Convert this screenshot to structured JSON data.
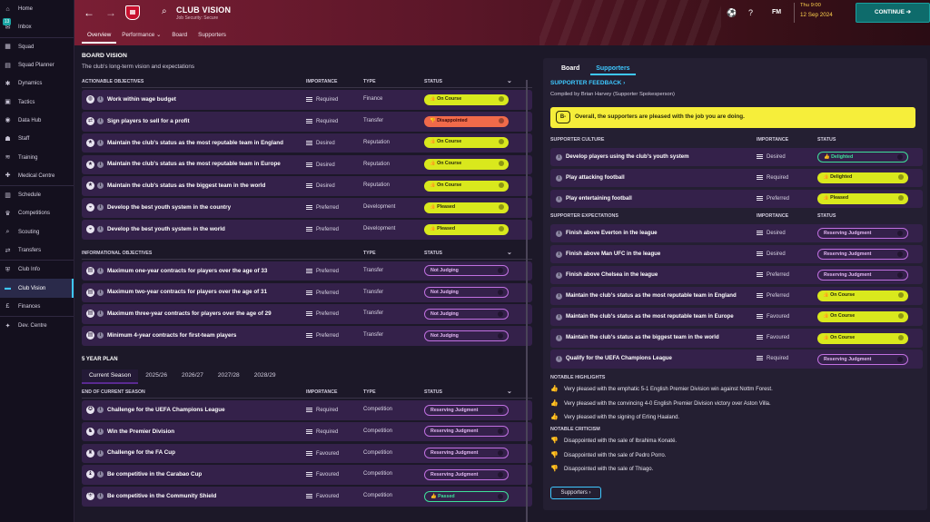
{
  "sidebar": {
    "items": [
      {
        "label": "Home",
        "icon": "home-icon",
        "glyph": "⌂"
      },
      {
        "label": "Inbox",
        "icon": "inbox-icon",
        "glyph": "✉",
        "badge": "13"
      },
      {
        "label": "Squad",
        "icon": "squad-icon",
        "glyph": "▦"
      },
      {
        "label": "Squad Planner",
        "icon": "squad-planner-icon",
        "glyph": "▤"
      },
      {
        "label": "Dynamics",
        "icon": "dynamics-icon",
        "glyph": "✱"
      },
      {
        "label": "Tactics",
        "icon": "tactics-icon",
        "glyph": "▣"
      },
      {
        "label": "Data Hub",
        "icon": "data-hub-icon",
        "glyph": "◉"
      },
      {
        "label": "Staff",
        "icon": "staff-icon",
        "glyph": "☗"
      },
      {
        "label": "Training",
        "icon": "training-icon",
        "glyph": "≋"
      },
      {
        "label": "Medical Centre",
        "icon": "medical-icon",
        "glyph": "✚"
      },
      {
        "label": "Schedule",
        "icon": "schedule-icon",
        "glyph": "▥"
      },
      {
        "label": "Competitions",
        "icon": "competitions-icon",
        "glyph": "♛"
      },
      {
        "label": "Scouting",
        "icon": "scouting-icon",
        "glyph": "⌕"
      },
      {
        "label": "Transfers",
        "icon": "transfers-icon",
        "glyph": "⇄"
      },
      {
        "label": "Club Info",
        "icon": "club-info-icon",
        "glyph": "⛨"
      },
      {
        "label": "Club Vision",
        "icon": "club-vision-icon",
        "glyph": "▬"
      },
      {
        "label": "Finances",
        "icon": "finances-icon",
        "glyph": "£"
      },
      {
        "label": "Dev. Centre",
        "icon": "dev-centre-icon",
        "glyph": "✦"
      }
    ],
    "active": "Club Vision"
  },
  "header": {
    "title": "CLUB VISION",
    "subtitle": "Job Security: Secure",
    "tabs": [
      "Overview",
      "Performance ⌄",
      "Board",
      "Supporters"
    ],
    "active_tab": "Overview",
    "fm_label": "FM",
    "time": "Thu 9:00",
    "date": "12 Sep 2024",
    "continue_label": "CONTINUE ➔"
  },
  "board_vision": {
    "title": "BOARD VISION",
    "subtitle": "The club's long-term vision and expectations",
    "actionable_header": "ACTIONABLE OBJECTIVES",
    "col_importance": "IMPORTANCE",
    "col_type": "TYPE",
    "col_status": "STATUS",
    "actionable": [
      {
        "label": "Work within wage budget",
        "importance": "Required",
        "type": "Finance",
        "status": "On Course",
        "style": "lime",
        "icon": "wallet-icon",
        "glyph": "◍"
      },
      {
        "label": "Sign players to sell for a profit",
        "importance": "Required",
        "type": "Transfer",
        "status": "Disappointed",
        "style": "red",
        "icon": "transfer-icon",
        "glyph": "⇄"
      },
      {
        "label": "Maintain the club's status as the most reputable team in England",
        "importance": "Desired",
        "type": "Reputation",
        "status": "On Course",
        "style": "lime",
        "icon": "star-icon",
        "glyph": "★"
      },
      {
        "label": "Maintain the club's status as the most reputable team in Europe",
        "importance": "Desired",
        "type": "Reputation",
        "status": "On Course",
        "style": "lime",
        "icon": "star-icon",
        "glyph": "★"
      },
      {
        "label": "Maintain the club's status as the biggest team in the world",
        "importance": "Desired",
        "type": "Reputation",
        "status": "On Course",
        "style": "lime",
        "icon": "star-icon",
        "glyph": "★"
      },
      {
        "label": "Develop the best youth system in the country",
        "importance": "Preferred",
        "type": "Development",
        "status": "Pleased",
        "style": "lime",
        "icon": "youth-icon",
        "glyph": "◒"
      },
      {
        "label": "Develop the best youth system in the world",
        "importance": "Preferred",
        "type": "Development",
        "status": "Pleased",
        "style": "lime",
        "icon": "youth-icon",
        "glyph": "◒"
      }
    ],
    "informational_header": "INFORMATIONAL OBJECTIVES",
    "informational": [
      {
        "label": "Maximum one-year contracts for players over the age of 33",
        "importance": "Preferred",
        "type": "Transfer",
        "status": "Not Judging",
        "style": "outline",
        "icon": "contract-icon",
        "glyph": "▤"
      },
      {
        "label": "Maximum two-year contracts for players over the age of 31",
        "importance": "Preferred",
        "type": "Transfer",
        "status": "Not Judging",
        "style": "outline",
        "icon": "contract-icon",
        "glyph": "▤"
      },
      {
        "label": "Maximum three-year contracts for players over the age of 29",
        "importance": "Preferred",
        "type": "Transfer",
        "status": "Not Judging",
        "style": "outline",
        "icon": "contract-icon",
        "glyph": "▤"
      },
      {
        "label": "Minimum 4-year contracts for first-team players",
        "importance": "Preferred",
        "type": "Transfer",
        "status": "Not Judging",
        "style": "outline",
        "icon": "contract-icon",
        "glyph": "▤"
      }
    ],
    "plan_title": "5 YEAR PLAN",
    "plan_tabs": [
      "Current Season",
      "2025/26",
      "2026/27",
      "2027/28",
      "2028/29"
    ],
    "plan_active": "Current Season",
    "season_header": "END OF CURRENT SEASON",
    "season": [
      {
        "label": "Challenge for the UEFA Champions League",
        "importance": "Required",
        "type": "Competition",
        "status": "Reserving Judgment",
        "style": "outline",
        "icon": "ucl-icon",
        "glyph": "✪"
      },
      {
        "label": "Win the Premier Division",
        "importance": "Required",
        "type": "Competition",
        "status": "Reserving Judgment",
        "style": "outline",
        "icon": "premier-icon",
        "glyph": "♞"
      },
      {
        "label": "Challenge for the FA Cup",
        "importance": "Favoured",
        "type": "Competition",
        "status": "Reserving Judgment",
        "style": "outline",
        "icon": "fa-cup-icon",
        "glyph": "♜"
      },
      {
        "label": "Be competitive in the Carabao Cup",
        "importance": "Favoured",
        "type": "Competition",
        "status": "Reserving Judgment",
        "style": "outline",
        "icon": "carabao-icon",
        "glyph": "♝"
      },
      {
        "label": "Be competitive in the Community Shield",
        "importance": "Favoured",
        "type": "Competition",
        "status": "Passed",
        "style": "outline-green",
        "icon": "shield-icon",
        "glyph": "⛨"
      }
    ]
  },
  "supporters": {
    "tabs": [
      "Board",
      "Supporters"
    ],
    "active_tab": "Supporters",
    "feedback_title": "SUPPORTER FEEDBACK ›",
    "compiled": "Compiled by Brian Harvey (Supporter Spokesperson)",
    "grade": "B-",
    "banner": "Overall, the supporters are pleased with the job you are doing.",
    "culture_header": "SUPPORTER CULTURE",
    "col_importance": "IMPORTANCE",
    "col_status": "STATUS",
    "culture": [
      {
        "label": "Develop players using the club's youth system",
        "importance": "Desired",
        "status": "Delighted",
        "style": "outline-green"
      },
      {
        "label": "Play attacking football",
        "importance": "Required",
        "status": "Delighted",
        "style": "lime"
      },
      {
        "label": "Play entertaining football",
        "importance": "Preferred",
        "status": "Pleased",
        "style": "lime"
      }
    ],
    "expect_header": "SUPPORTER EXPECTATIONS",
    "expectations": [
      {
        "label": "Finish above Everton in the league",
        "importance": "Desired",
        "status": "Reserving Judgment",
        "style": "outline"
      },
      {
        "label": "Finish above Man UFC in the league",
        "importance": "Desired",
        "status": "Reserving Judgment",
        "style": "outline"
      },
      {
        "label": "Finish above Chelsea in the league",
        "importance": "Preferred",
        "status": "Reserving Judgment",
        "style": "outline"
      },
      {
        "label": "Maintain the club's status as the most reputable team in England",
        "importance": "Preferred",
        "status": "On Course",
        "style": "lime"
      },
      {
        "label": "Maintain the club's status as the most reputable team in Europe",
        "importance": "Favoured",
        "status": "On Course",
        "style": "lime"
      },
      {
        "label": "Maintain the club's status as the biggest team in the world",
        "importance": "Favoured",
        "status": "On Course",
        "style": "lime"
      },
      {
        "label": "Qualify for the UEFA Champions League",
        "importance": "Required",
        "status": "Reserving Judgment",
        "style": "outline"
      }
    ],
    "highlights_header": "NOTABLE HIGHLIGHTS",
    "highlights": [
      "Very pleased with the emphatic 5-1 English Premier Division win against Nottm Forest.",
      "Very pleased with the convincing 4-0 English Premier Division victory over Aston Villa.",
      "Very pleased with the signing of Erling Haaland."
    ],
    "criticism_header": "NOTABLE CRITICISM",
    "criticism": [
      "Disappointed with the sale of Ibrahima Konaté.",
      "Disappointed with the sale of Pedro Porro.",
      "Disappointed with the sale of Thiago."
    ],
    "button": "Supporters ›"
  }
}
